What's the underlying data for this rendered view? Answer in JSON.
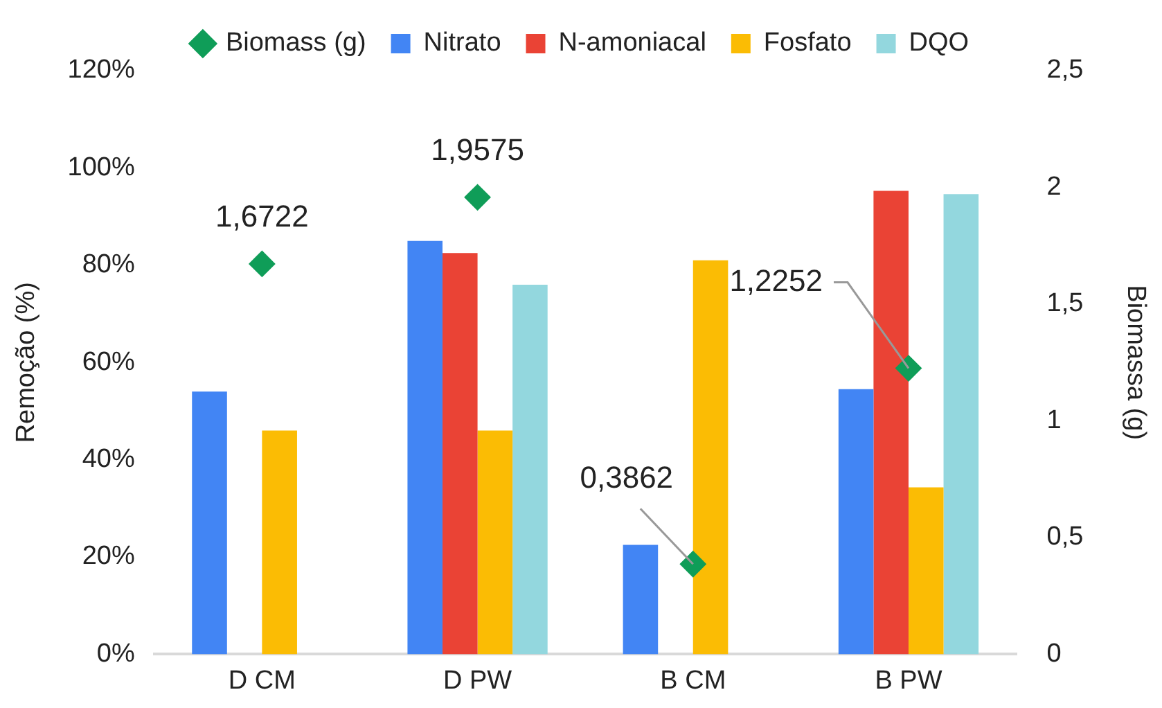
{
  "chart_data": {
    "type": "bar",
    "categories": [
      "D CM",
      "D PW",
      "B CM",
      "B PW"
    ],
    "series": [
      {
        "name": "Nitrato",
        "color": "#4285f4",
        "values": [
          54,
          85,
          22.5,
          54.5
        ]
      },
      {
        "name": "N-amoniacal",
        "color": "#ea4335",
        "values": [
          null,
          82.5,
          null,
          95.3
        ]
      },
      {
        "name": "Fosfato",
        "color": "#fbbc04",
        "values": [
          46,
          46,
          81,
          34.3
        ]
      },
      {
        "name": "DQO",
        "color": "#93d7de",
        "values": [
          null,
          76,
          null,
          94.6
        ]
      },
      {
        "name": "Biomass (g)",
        "type": "scatter",
        "axis": "y2",
        "marker": "diamond",
        "color": "#0f9d58",
        "values": [
          1.6722,
          1.9575,
          0.3862,
          1.2252
        ],
        "value_labels": [
          "1,6722",
          "1,9575",
          "0,3862",
          "1,2252"
        ]
      }
    ],
    "ylabel": "Remoção (%)",
    "y2label": "Biomassa (g)",
    "ylim": [
      0,
      120
    ],
    "yticks": [
      {
        "value": 0,
        "label": "0%"
      },
      {
        "value": 20,
        "label": "20%"
      },
      {
        "value": 40,
        "label": "40%"
      },
      {
        "value": 60,
        "label": "60%"
      },
      {
        "value": 80,
        "label": "80%"
      },
      {
        "value": 100,
        "label": "100%"
      },
      {
        "value": 120,
        "label": "120%"
      }
    ],
    "y2lim": [
      0,
      2.5
    ],
    "y2ticks": [
      0,
      {
        "value": 0.5,
        "label": "0,5"
      },
      1,
      {
        "value": 1.5,
        "label": "1,5"
      },
      2,
      {
        "value": 2.5,
        "label": "2,5"
      }
    ],
    "legend": "top",
    "grid": false
  }
}
